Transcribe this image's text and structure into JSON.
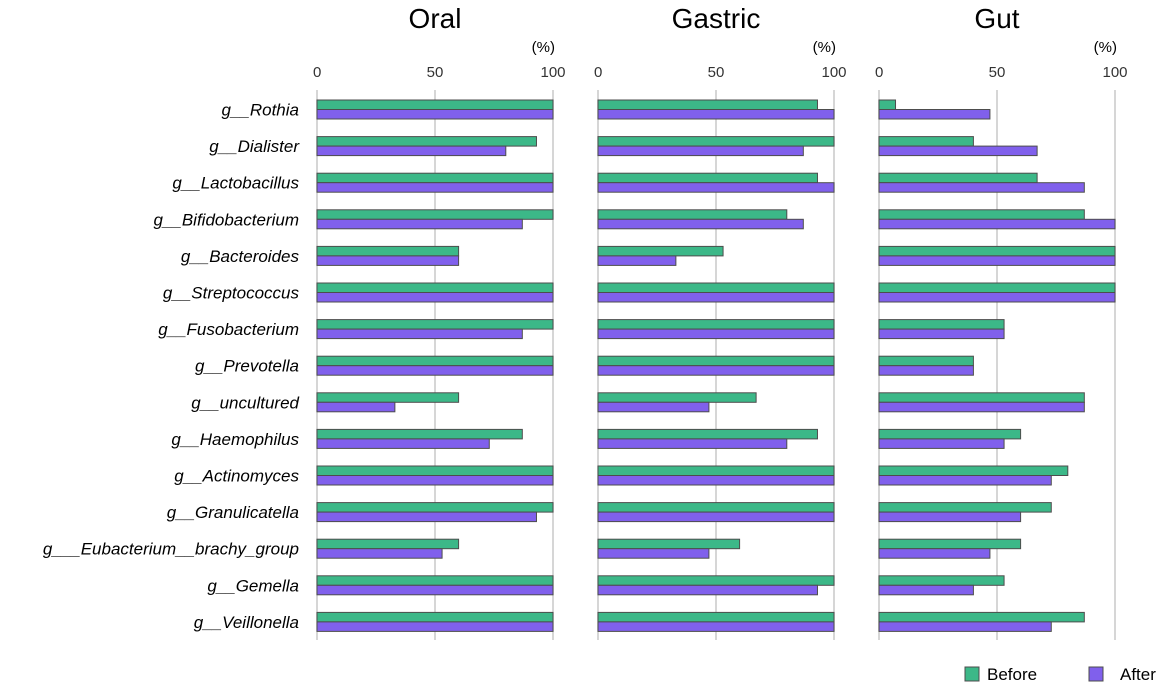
{
  "chart_data": {
    "type": "bar",
    "orientation": "horizontal",
    "categories": [
      "g__Rothia",
      "g__Dialister",
      "g__Lactobacillus",
      "g__Bifidobacterium",
      "g__Bacteroides",
      "g__Streptococcus",
      "g__Fusobacterium",
      "g__Prevotella",
      "g__uncultured",
      "g__Haemophilus",
      "g__Actinomyces",
      "g__Granulicatella",
      "g___Eubacterium__brachy_group",
      "g__Gemella",
      "g__Veillonella"
    ],
    "xlim": [
      0,
      100
    ],
    "ticks": [
      0,
      50,
      100
    ],
    "unit": "(%)",
    "legend_position": "bottom-right",
    "panels": [
      {
        "title": "Oral",
        "series": [
          {
            "name": "Before",
            "values": [
              100,
              93,
              100,
              100,
              60,
              100,
              100,
              100,
              60,
              87,
              100,
              100,
              60,
              100,
              100
            ]
          },
          {
            "name": "After",
            "values": [
              100,
              80,
              100,
              87,
              60,
              100,
              87,
              100,
              33,
              73,
              100,
              93,
              53,
              100,
              100
            ]
          }
        ]
      },
      {
        "title": "Gastric",
        "series": [
          {
            "name": "Before",
            "values": [
              93,
              100,
              93,
              80,
              53,
              100,
              100,
              100,
              67,
              93,
              100,
              100,
              60,
              100,
              100
            ]
          },
          {
            "name": "After",
            "values": [
              100,
              87,
              100,
              87,
              33,
              100,
              100,
              100,
              47,
              80,
              100,
              100,
              47,
              93,
              100
            ]
          }
        ]
      },
      {
        "title": "Gut",
        "series": [
          {
            "name": "Before",
            "values": [
              7,
              40,
              67,
              87,
              100,
              100,
              53,
              40,
              87,
              60,
              80,
              73,
              60,
              53,
              87
            ]
          },
          {
            "name": "After",
            "values": [
              47,
              67,
              87,
              100,
              100,
              100,
              53,
              40,
              87,
              53,
              73,
              60,
              47,
              40,
              73
            ]
          }
        ]
      }
    ],
    "colors": {
      "Before": "#3cb888",
      "After": "#8060ec",
      "grid": "#c8c8c8",
      "bar_stroke": "#4d4d4d"
    }
  }
}
